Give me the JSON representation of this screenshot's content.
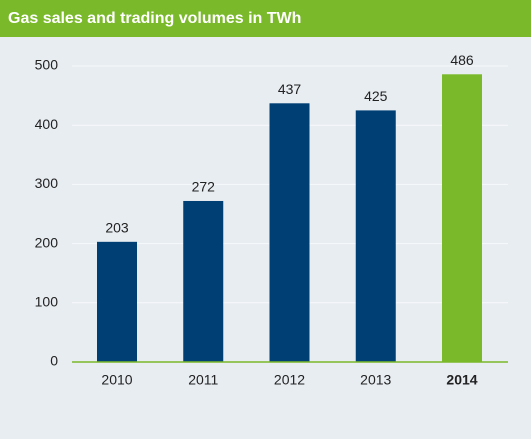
{
  "chart_data": {
    "type": "bar",
    "title": "Gas sales and trading volumes in TWh",
    "categories": [
      "2010",
      "2011",
      "2012",
      "2013",
      "2014"
    ],
    "values": [
      203,
      272,
      437,
      425,
      486
    ],
    "colors": [
      "#003f73",
      "#003f73",
      "#003f73",
      "#003f73",
      "#7ab929"
    ],
    "bold": [
      false,
      false,
      false,
      false,
      true
    ],
    "ylim": [
      0,
      500
    ],
    "yticks": [
      0,
      100,
      200,
      300,
      400,
      500
    ],
    "grid": true
  }
}
